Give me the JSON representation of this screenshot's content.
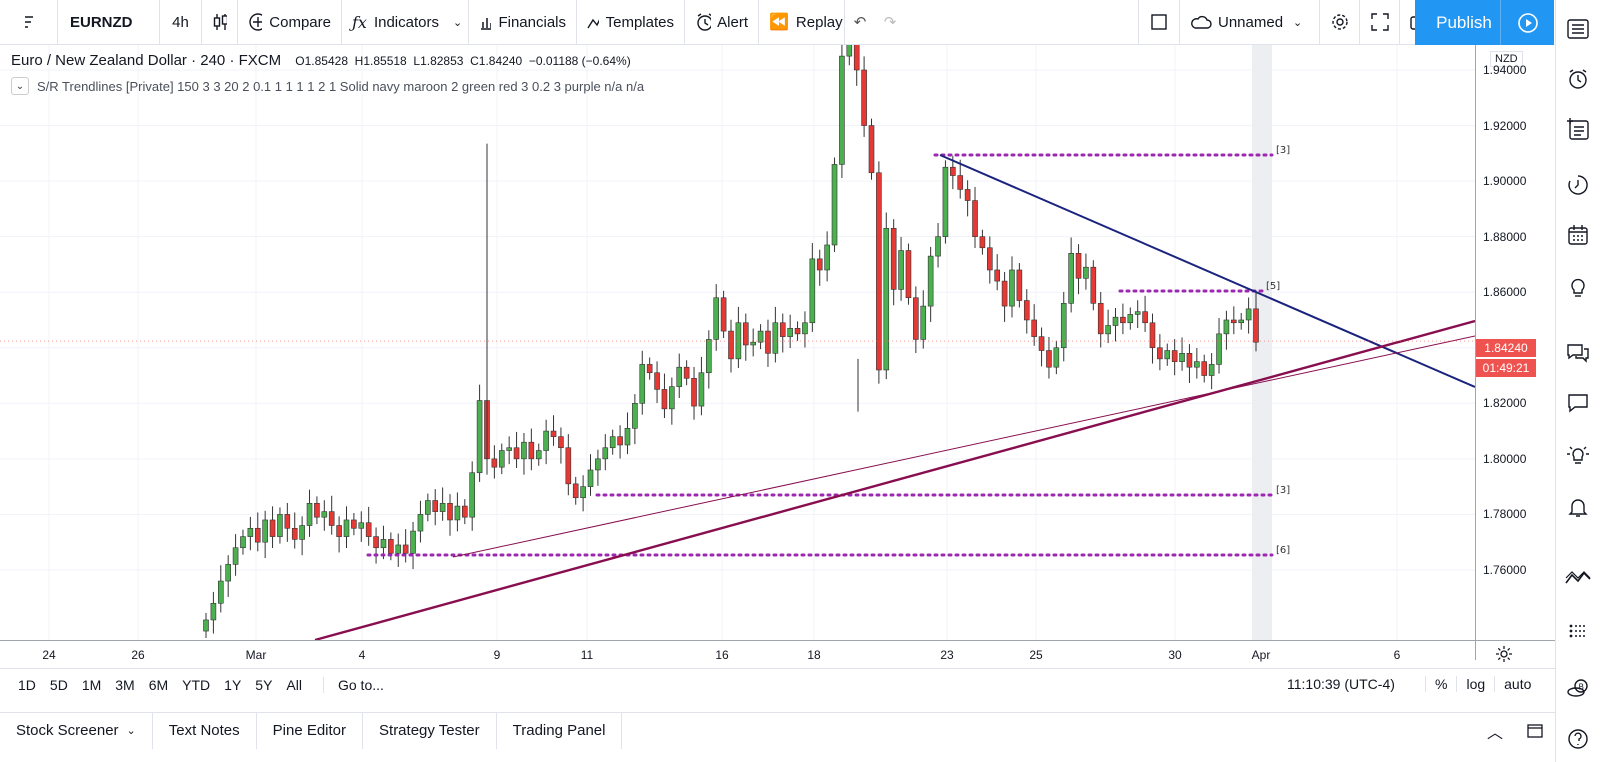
{
  "toolbar": {
    "symbol": "EURNZD",
    "interval": "4h",
    "compare_label": "Compare",
    "indicators_label": "Indicators",
    "financials_label": "Financials",
    "templates_label": "Templates",
    "alert_label": "Alert",
    "replay_label": "Replay",
    "layout_name": "Unnamed",
    "publish_label": "Publish"
  },
  "legend": {
    "title": "Euro / New Zealand Dollar · 240 · FXCM",
    "open": "O1.85428",
    "high": "H1.85518",
    "low": "L1.82853",
    "close": "C1.84240",
    "change": "−0.01188 (−0.64%)",
    "indicator": "S/R Trendlines [Private] 150 3 3 20 2 0.1 1 1 1 1 2 1 Solid navy maroon 2 green red 3 0.2 3 purple  n/a  n/a"
  },
  "price_scale": {
    "currency": "NZD",
    "ticks": [
      "1.94000",
      "1.92000",
      "1.90000",
      "1.88000",
      "1.86000",
      "1.84000",
      "1.82000",
      "1.80000",
      "1.78000",
      "1.76000"
    ],
    "last_price": "1.84240",
    "countdown": "01:49:21"
  },
  "time_scale": {
    "ticks": [
      "24",
      "26",
      "Mar",
      "4",
      "9",
      "11",
      "16",
      "18",
      "23",
      "25",
      "30",
      "Apr",
      "6"
    ]
  },
  "sr_labels": [
    "[3]",
    "[5]",
    "[3]",
    "[6]"
  ],
  "range": {
    "buttons": [
      "1D",
      "5D",
      "1M",
      "3M",
      "6M",
      "YTD",
      "1Y",
      "5Y",
      "All"
    ],
    "goto": "Go to...",
    "clock": "11:10:39 (UTC-4)",
    "percent": "%",
    "log": "log",
    "auto": "auto"
  },
  "bottom_tabs": [
    "Stock Screener",
    "Text Notes",
    "Pine Editor",
    "Strategy Tester",
    "Trading Panel"
  ],
  "colors": {
    "up": "#4caf50",
    "down": "#e53935",
    "accent": "#2196f3",
    "navy_line": "#1a237e",
    "maroon_line": "#880e4f",
    "purple_dots": "#9c27b0"
  }
}
